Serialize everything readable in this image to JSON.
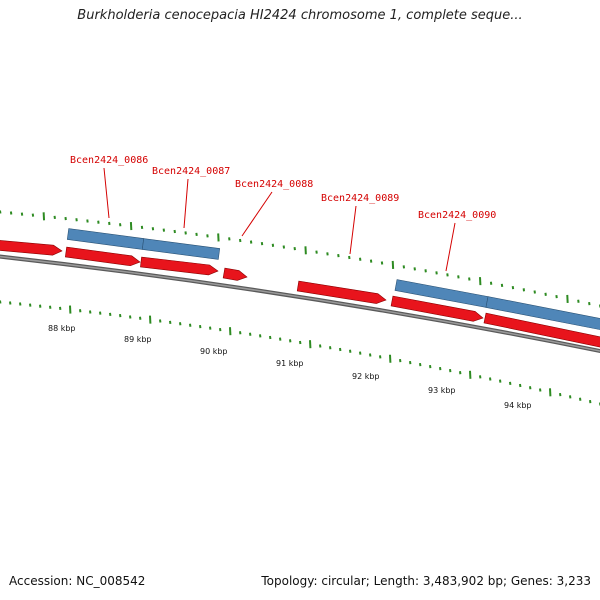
{
  "title": "Burkholderia cenocepacia HI2424 chromosome 1, complete seque...",
  "accession_text": "Accession: NC_008542",
  "summary_text": "Topology: circular; Length: 3,483,902 bp; Genes: 3,233",
  "colors": {
    "cds": "#e8141c",
    "gene": "#4f86b8",
    "backbone": "#7a7a7a",
    "tick": "#2e8b22",
    "label": "#d40000"
  },
  "gene_labels": [
    "Bcen2424_0086",
    "Bcen2424_0087",
    "Bcen2424_0088",
    "Bcen2424_0089",
    "Bcen2424_0090"
  ],
  "kbp_ticks": [
    "88 kbp",
    "89 kbp",
    "90 kbp",
    "91 kbp",
    "92 kbp",
    "93 kbp",
    "94 kbp"
  ]
}
